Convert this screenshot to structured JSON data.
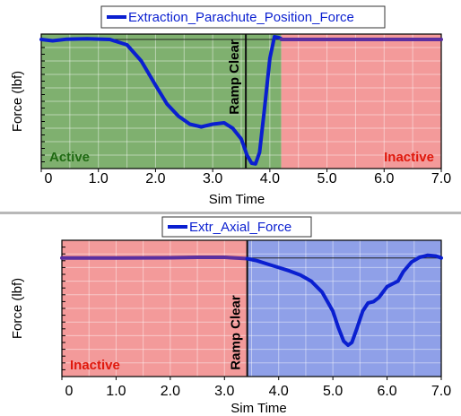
{
  "chart_data": [
    {
      "type": "line",
      "legend": "Extraction_Parachute_Position_Force",
      "xlabel": "Sim Time",
      "ylabel": "Force (lbf)",
      "xlim": [
        0,
        7.0
      ],
      "ylim": [
        0,
        1
      ],
      "xticks": [
        0,
        1.0,
        2.0,
        3.0,
        4.0,
        5.0,
        6.0,
        7.0
      ],
      "xtick_labels": [
        "0",
        "1.0",
        "2.0",
        "3.0",
        "4.0",
        "5.0",
        "6.0",
        "7.0"
      ],
      "zero_level": 0.96,
      "regions": [
        {
          "label": "Active",
          "x0": 0,
          "x1": 4.2,
          "color": "#7fb06f",
          "label_color": "#1f6a12",
          "label_pos": "bottom-left"
        },
        {
          "label": "Inactive",
          "x0": 4.2,
          "x1": 7.0,
          "color": "#f39a9a",
          "label_color": "#e0180c",
          "label_pos": "bottom-right"
        }
      ],
      "marker": {
        "label": "Ramp Clear",
        "x": 3.58
      },
      "series": [
        {
          "name": "Extraction_Parachute_Position_Force",
          "color": "#0a1fd0",
          "x": [
            0,
            0.2,
            0.45,
            0.8,
            1.2,
            1.5,
            1.75,
            2.0,
            2.2,
            2.4,
            2.6,
            2.8,
            3.0,
            3.2,
            3.35,
            3.5,
            3.6,
            3.68,
            3.75,
            3.82,
            3.9,
            4.0,
            4.08,
            4.15,
            4.2
          ],
          "y": [
            0.96,
            0.95,
            0.962,
            0.965,
            0.96,
            0.92,
            0.8,
            0.62,
            0.48,
            0.39,
            0.33,
            0.31,
            0.33,
            0.34,
            0.3,
            0.22,
            0.1,
            0.04,
            0.035,
            0.12,
            0.42,
            0.82,
            0.98,
            0.975,
            0.965
          ]
        },
        {
          "name": "",
          "color": "#5b2fa0",
          "x": [
            4.2,
            7.0
          ],
          "y": [
            0.96,
            0.96
          ]
        }
      ]
    },
    {
      "type": "line",
      "legend": "Extr_Axial_Force",
      "xlabel": "Sim Time",
      "ylabel": "Force (lbf)",
      "xlim": [
        0,
        7.0
      ],
      "ylim": [
        0,
        1
      ],
      "xticks": [
        0,
        1.0,
        2.0,
        3.0,
        4.0,
        5.0,
        6.0,
        7.0
      ],
      "xtick_labels": [
        "0",
        "1.0",
        "2.0",
        "3.0",
        "4.0",
        "5.0",
        "6.0",
        "7.0"
      ],
      "zero_level": 0.87,
      "regions": [
        {
          "label": "Inactive",
          "x0": 0,
          "x1": 3.42,
          "color": "#f39a9a",
          "label_color": "#e0180c",
          "label_pos": "bottom-left"
        },
        {
          "label": "",
          "x0": 3.42,
          "x1": 7.0,
          "color": "#8fa0e8",
          "label_color": "#000000",
          "label_pos": "none"
        }
      ],
      "marker": {
        "label": "Ramp Clear",
        "x": 3.42
      },
      "series": [
        {
          "name": "",
          "color": "#5b2fa0",
          "x": [
            0,
            1.0,
            2.0,
            2.5,
            3.0,
            3.42
          ],
          "y": [
            0.87,
            0.87,
            0.872,
            0.875,
            0.875,
            0.865
          ]
        },
        {
          "name": "Extr_Axial_Force",
          "color": "#0a1fd0",
          "x": [
            3.42,
            3.6,
            3.8,
            4.0,
            4.2,
            4.4,
            4.6,
            4.8,
            5.0,
            5.1,
            5.2,
            5.28,
            5.35,
            5.45,
            5.55,
            5.65,
            5.75,
            5.85,
            6.0,
            6.1,
            6.2,
            6.3,
            6.45,
            6.6,
            6.75,
            6.9,
            7.0
          ],
          "y": [
            0.865,
            0.85,
            0.825,
            0.8,
            0.775,
            0.745,
            0.7,
            0.62,
            0.48,
            0.36,
            0.26,
            0.23,
            0.25,
            0.36,
            0.48,
            0.54,
            0.55,
            0.58,
            0.66,
            0.68,
            0.7,
            0.77,
            0.84,
            0.875,
            0.89,
            0.885,
            0.87
          ]
        }
      ]
    }
  ]
}
